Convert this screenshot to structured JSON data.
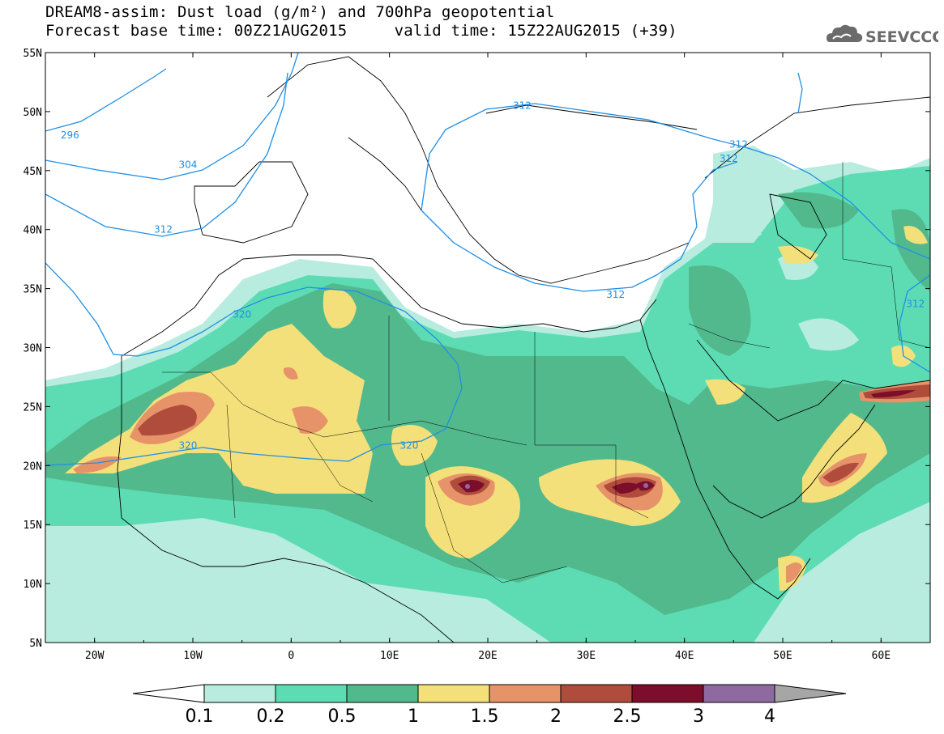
{
  "title": {
    "line1": "DREAM8-assim: Dust load (g/m²) and 700hPa geopotential",
    "line2_left": "Forecast base time: 00Z21AUG2015",
    "line2_right": "valid time: 15Z22AUG2015 (+39)"
  },
  "logo": {
    "text": "SEEVCCC",
    "icon": "cloud-icon",
    "color": "#6b6b6b"
  },
  "map": {
    "lon_range": [
      -25,
      65
    ],
    "lat_range": [
      5,
      55
    ],
    "lat_ticks": [
      "5N",
      "10N",
      "15N",
      "20N",
      "25N",
      "30N",
      "35N",
      "40N",
      "45N",
      "50N",
      "55N"
    ],
    "lon_ticks": [
      "20W",
      "10W",
      "0",
      "10E",
      "20E",
      "30E",
      "40E",
      "50E",
      "60E"
    ],
    "contour_color": "#1f8fe6",
    "contour_labels": [
      {
        "text": "296",
        "lon": -22.5,
        "lat": 48.0
      },
      {
        "text": "304",
        "lon": -10.5,
        "lat": 45.5
      },
      {
        "text": "312",
        "lon": -13.0,
        "lat": 40.0
      },
      {
        "text": "312",
        "lon": 23.5,
        "lat": 50.5
      },
      {
        "text": "312",
        "lon": 45.5,
        "lat": 47.2
      },
      {
        "text": "312",
        "lon": 44.5,
        "lat": 46.0
      },
      {
        "text": "312",
        "lon": 33.0,
        "lat": 34.5
      },
      {
        "text": "312",
        "lon": 63.5,
        "lat": 33.7
      },
      {
        "text": "320",
        "lon": -5.0,
        "lat": 32.8
      },
      {
        "text": "320",
        "lon": -10.5,
        "lat": 21.7
      },
      {
        "text": "320",
        "lon": 12.0,
        "lat": 21.7
      }
    ]
  },
  "colorbar": {
    "labels": [
      "0.1",
      "0.2",
      "0.5",
      "1",
      "1.5",
      "2",
      "2.5",
      "3",
      "4"
    ],
    "colors": [
      "#ffffff",
      "#b8ecdf",
      "#5ddcb4",
      "#52b98d",
      "#f4e07a",
      "#e7936a",
      "#b04c3c",
      "#7c0e2c",
      "#8e6aa1",
      "#a6a6a6"
    ]
  }
}
